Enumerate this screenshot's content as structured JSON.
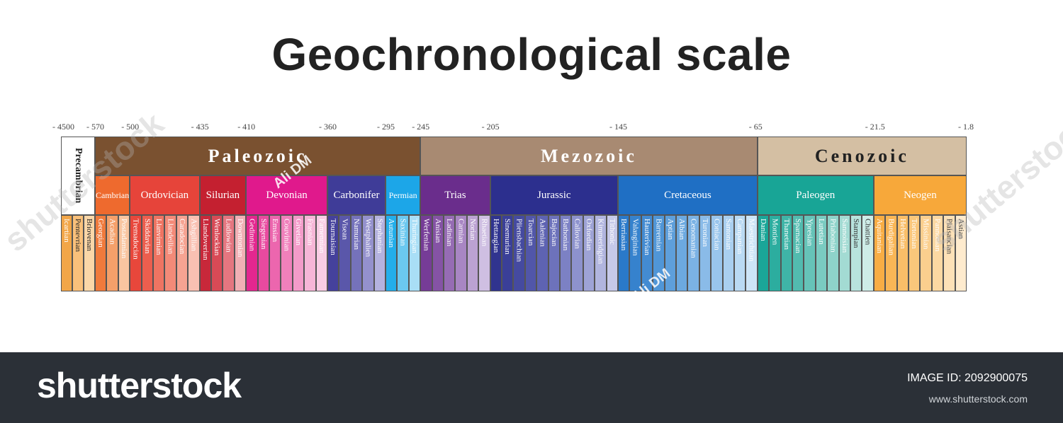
{
  "title": "Geochronological scale",
  "ticks": [
    "- 4500",
    "- 570",
    "- 500",
    "- 435",
    "- 410",
    "- 360",
    "- 295",
    "- 245",
    "- 205",
    "- 145",
    "- 65",
    "- 21.5",
    "- 1.8"
  ],
  "precambrian": {
    "label": "Precambrian",
    "color": "#ffffff",
    "stages": [
      {
        "name": "Icartian",
        "color": "#f2a648"
      },
      {
        "name": "Pentevrian",
        "color": "#f9c07a"
      },
      {
        "name": "Briovenan",
        "color": "#fbd7a8"
      }
    ]
  },
  "eras": [
    {
      "name": "Paleozoic",
      "color": "#7a5130",
      "text_color": "#ffffff",
      "periods": [
        {
          "name": "Cambrian",
          "color": "#ee6a2e",
          "stages": [
            {
              "name": "Georgian",
              "color": "#f07a3c"
            },
            {
              "name": "Acadian",
              "color": "#f5a06a"
            },
            {
              "name": "Postadamian",
              "color": "#f9c5a0"
            }
          ]
        },
        {
          "name": "Ordovician",
          "color": "#e6443a",
          "stages": [
            {
              "name": "Tremadocian",
              "color": "#e8473b"
            },
            {
              "name": "Skiddavian",
              "color": "#ec5e4e"
            },
            {
              "name": "Llanvirnian",
              "color": "#ef7462"
            },
            {
              "name": "Llandeilian",
              "color": "#f38a78"
            },
            {
              "name": "Caradocian",
              "color": "#f6a392"
            },
            {
              "name": "Ashgillian",
              "color": "#f9c0b2"
            }
          ]
        },
        {
          "name": "Silurian",
          "color": "#c42030",
          "stages": [
            {
              "name": "Llandoverian",
              "color": "#c8283a"
            },
            {
              "name": "Wenlockian",
              "color": "#d84a56"
            },
            {
              "name": "Ludlowian",
              "color": "#e57680"
            },
            {
              "name": "Downtonian",
              "color": "#f1b0b5"
            }
          ]
        },
        {
          "name": "Devonian",
          "color": "#e0198c",
          "stages": [
            {
              "name": "Gedinnian",
              "color": "#e3278f"
            },
            {
              "name": "Siegenian",
              "color": "#e84a9f"
            },
            {
              "name": "Emsian",
              "color": "#ec66ae"
            },
            {
              "name": "Couvinian",
              "color": "#f080bb"
            },
            {
              "name": "Givetian",
              "color": "#f39bc9"
            },
            {
              "name": "Frasnian",
              "color": "#f6b6d7"
            },
            {
              "name": "Famennian",
              "color": "#f9cde4"
            }
          ]
        },
        {
          "name": "Carbonifer",
          "color": "#3f3c98",
          "stages": [
            {
              "name": "Tournaisian",
              "color": "#45419c"
            },
            {
              "name": "Visean",
              "color": "#5a57aa"
            },
            {
              "name": "Namurian",
              "color": "#7572bb"
            },
            {
              "name": "Westphalien",
              "color": "#9491cd"
            },
            {
              "name": "Stephanian",
              "color": "#b4b2df"
            }
          ]
        },
        {
          "name": "Permian",
          "color": "#1ca6e8",
          "stages": [
            {
              "name": "Autunian",
              "color": "#23aeea"
            },
            {
              "name": "Saxinian",
              "color": "#6bc8f0"
            },
            {
              "name": "Thuringian",
              "color": "#a9def6"
            }
          ]
        }
      ]
    },
    {
      "name": "Mezozoic",
      "color": "#a88a72",
      "text_color": "#ffffff",
      "periods": [
        {
          "name": "Trias",
          "color": "#6a2d8c",
          "stages": [
            {
              "name": "Werfenian",
              "color": "#763c97"
            },
            {
              "name": "Anisian",
              "color": "#8553a5"
            },
            {
              "name": "Ladinian",
              "color": "#966cb4"
            },
            {
              "name": "Carnian",
              "color": "#a886c3"
            },
            {
              "name": "Norian",
              "color": "#bba2d2"
            },
            {
              "name": "Rhaetian",
              "color": "#cfbfe2"
            }
          ]
        },
        {
          "name": "Jurassic",
          "color": "#2c2f8e",
          "stages": [
            {
              "name": "Hettangian",
              "color": "#30348f"
            },
            {
              "name": "Sinemurian",
              "color": "#3a3f98"
            },
            {
              "name": "Pliensbachian",
              "color": "#454aa0"
            },
            {
              "name": "Toarcian",
              "color": "#5156a9"
            },
            {
              "name": "Aalenian",
              "color": "#5e63b2"
            },
            {
              "name": "Bajocian",
              "color": "#6d72bb"
            },
            {
              "name": "Bathonian",
              "color": "#7c81c4"
            },
            {
              "name": "Callovian",
              "color": "#8d92cd"
            },
            {
              "name": "Oxfordian",
              "color": "#9ea3d6"
            },
            {
              "name": "Kimmeridgian",
              "color": "#b1b5df"
            },
            {
              "name": "Tithonic",
              "color": "#c6c9e9"
            }
          ]
        },
        {
          "name": "Cretaceous",
          "color": "#1f6fc4",
          "stages": [
            {
              "name": "Berriasian",
              "color": "#2a79c9"
            },
            {
              "name": "Valanginian",
              "color": "#3682cd"
            },
            {
              "name": "Hauterivian",
              "color": "#438bd2"
            },
            {
              "name": "Barremian",
              "color": "#5096d7"
            },
            {
              "name": "Aptian",
              "color": "#5e9fdb"
            },
            {
              "name": "Albian",
              "color": "#6ca9e0"
            },
            {
              "name": "Cenomanian",
              "color": "#7bb2e4"
            },
            {
              "name": "Turonian",
              "color": "#8abbe8"
            },
            {
              "name": "Coniacian",
              "color": "#99c5ec"
            },
            {
              "name": "Santonian",
              "color": "#a9cfef"
            },
            {
              "name": "Campanian",
              "color": "#badaf3"
            },
            {
              "name": "Maestrichtian",
              "color": "#cde5f7"
            }
          ]
        }
      ]
    },
    {
      "name": "Cenozoic",
      "color": "#d4bfa3",
      "text_color": "#222222",
      "periods": [
        {
          "name": "Paleogen",
          "color": "#18a596",
          "stages": [
            {
              "name": "Danian",
              "color": "#1aa698"
            },
            {
              "name": "Montien",
              "color": "#2cad9f"
            },
            {
              "name": "Thanetian",
              "color": "#3fb4a7"
            },
            {
              "name": "Sparnacian",
              "color": "#52bbaf"
            },
            {
              "name": "Ypresian",
              "color": "#66c3b8"
            },
            {
              "name": "Lutetian",
              "color": "#7acbc1"
            },
            {
              "name": "Priabonian",
              "color": "#8ed3ca"
            },
            {
              "name": "Sannoisian",
              "color": "#a3dbd3"
            },
            {
              "name": "Stampian",
              "color": "#b8e3dd"
            },
            {
              "name": "Chattien",
              "color": "#ceece7"
            }
          ]
        },
        {
          "name": "Neogen",
          "color": "#f7a83a",
          "stages": [
            {
              "name": "Aquitanian",
              "color": "#f8ad44"
            },
            {
              "name": "Burdigalian",
              "color": "#f9b656"
            },
            {
              "name": "Helvetian",
              "color": "#f9be68"
            },
            {
              "name": "Tortonian",
              "color": "#fac77b"
            },
            {
              "name": "Missinian",
              "color": "#fbcf8e"
            },
            {
              "name": "Pannonian",
              "color": "#fcd8a2"
            },
            {
              "name": "Plaisancian",
              "color": "#fde1b7"
            },
            {
              "name": "Astian",
              "color": "#feebce"
            }
          ]
        }
      ]
    }
  ],
  "watermark": {
    "logo_text": "shutterstock",
    "author": "Ali DM",
    "image_id_label": "IMAGE ID: 2092900075",
    "url": "www.shutterstock.com"
  }
}
